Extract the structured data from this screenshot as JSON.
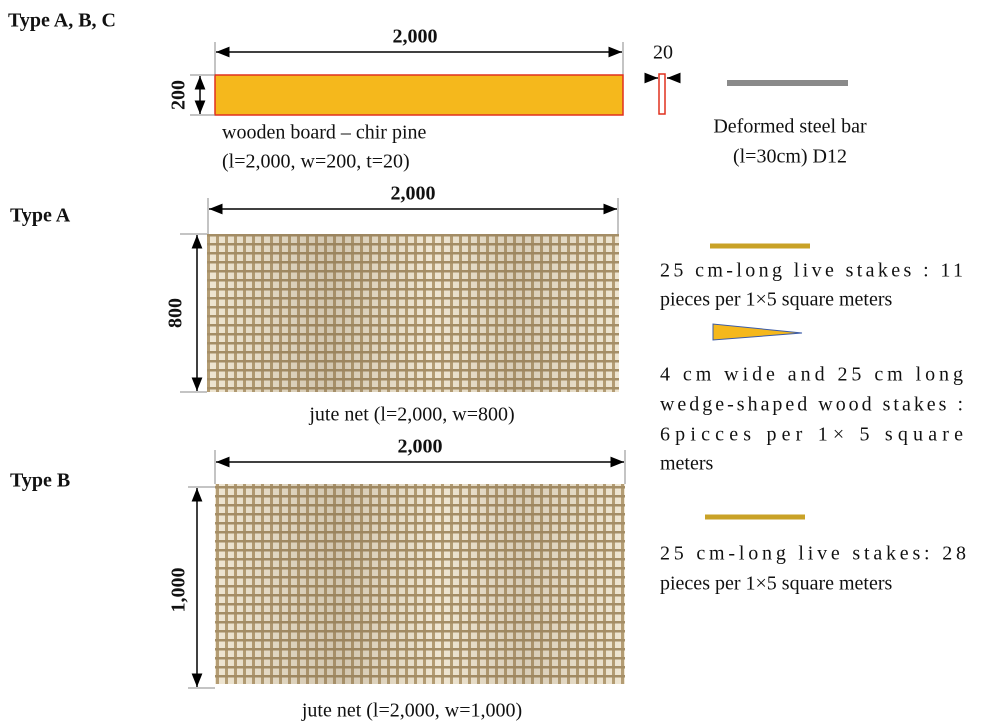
{
  "labels": {
    "type_abc": "Type A, B, C",
    "type_a": "Type A",
    "type_b": "Type B"
  },
  "board": {
    "length": "2,000",
    "width": "200",
    "thickness": "20",
    "caption": [
      "wooden board – chir pine",
      "(l=2,000, w=200, t=20)"
    ]
  },
  "steel_bar": {
    "caption": [
      "Deformed steel bar",
      "(l=30cm) D12"
    ]
  },
  "type_a_net": {
    "length": "2,000",
    "width": "800",
    "caption": "jute net (l=2,000, w=800)"
  },
  "type_b_net": {
    "length": "2,000",
    "width": "1,000",
    "caption": "jute net (l=2,000, w=1,000)"
  },
  "legend": [
    {
      "lines": [
        "25 cm-long live stakes : 11",
        "pieces per 1×5 square meters"
      ]
    },
    {
      "lines": [
        "4 cm wide and 25 cm long",
        "wedge-shaped wood stakes :",
        "6picces per 1× 5 square",
        "meters"
      ]
    },
    {
      "lines": [
        "25 cm-long live stakes: 28",
        "pieces per 1×5 square meters"
      ]
    }
  ]
}
